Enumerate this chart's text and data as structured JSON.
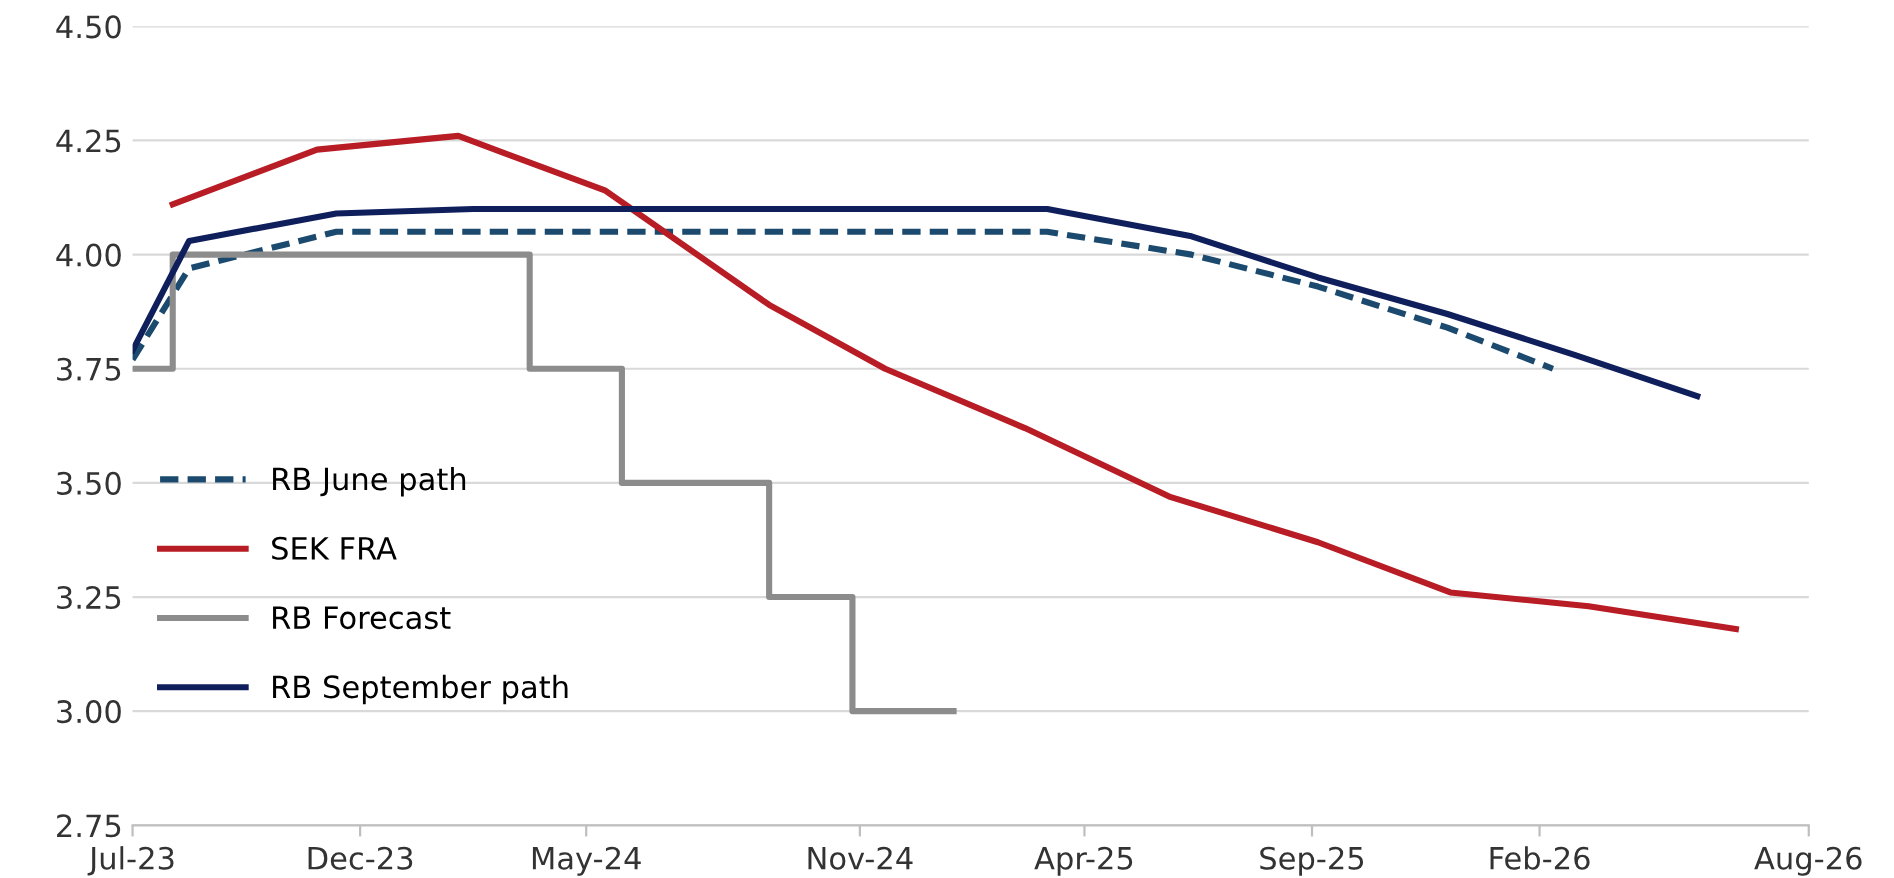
{
  "chart_data": {
    "type": "line",
    "xlim": [
      "2023-07-01",
      "2026-08-01"
    ],
    "xticks": [
      {
        "value": "2023-07-01",
        "label": "Jul-23"
      },
      {
        "value": "2023-12-01",
        "label": "Dec-23"
      },
      {
        "value": "2024-05-01",
        "label": "May-24"
      },
      {
        "value": "2024-11-01",
        "label": "Nov-24"
      },
      {
        "value": "2025-04-01",
        "label": "Apr-25"
      },
      {
        "value": "2025-09-01",
        "label": "Sep-25"
      },
      {
        "value": "2026-02-01",
        "label": "Feb-26"
      },
      {
        "value": "2026-08-01",
        "label": "Aug-26"
      }
    ],
    "ylim": [
      2.75,
      4.5
    ],
    "yticks": [
      {
        "value": 2.75,
        "label": "2.75"
      },
      {
        "value": 3.0,
        "label": "3.00"
      },
      {
        "value": 3.25,
        "label": "3.25"
      },
      {
        "value": 3.5,
        "label": "3.50"
      },
      {
        "value": 3.75,
        "label": "3.75"
      },
      {
        "value": 4.0,
        "label": "4.00"
      },
      {
        "value": 4.25,
        "label": "4.25"
      },
      {
        "value": 4.5,
        "label": "4.50"
      }
    ],
    "grid": "y",
    "legend": "left",
    "series": [
      {
        "name": "RB June path",
        "color": "#1b4a6e",
        "line_style": "dashed",
        "x": [
          "2023-07-01",
          "2023-08-08",
          "2023-11-15",
          "2025-03-07",
          "2025-06-12",
          "2025-09-05",
          "2025-12-01",
          "2026-02-10"
        ],
        "values": [
          3.77,
          3.97,
          4.05,
          4.05,
          4.0,
          3.93,
          3.84,
          3.75
        ]
      },
      {
        "name": "SEK FRA",
        "color": "#b81c25",
        "x": [
          "2023-07-28",
          "2023-11-02",
          "2024-02-05",
          "2024-05-14",
          "2024-09-01",
          "2024-11-18",
          "2025-02-20",
          "2025-05-28",
          "2025-09-05",
          "2025-12-03",
          "2026-03-06",
          "2026-06-13"
        ],
        "values": [
          4.11,
          4.23,
          4.26,
          4.14,
          3.89,
          3.75,
          3.62,
          3.47,
          3.37,
          3.26,
          3.23,
          3.18
        ]
      },
      {
        "name": "RB Forecast",
        "type": "step",
        "color": "#8c8c8c",
        "x": [
          "2023-07-01",
          "2023-07-28",
          "2024-03-24",
          "2024-05-25",
          "2024-09-01",
          "2024-10-27",
          "2025-01-03"
        ],
        "values": [
          3.75,
          4.0,
          3.75,
          3.5,
          3.25,
          3.0,
          3.0
        ]
      },
      {
        "name": "RB September path",
        "color": "#0f1f5c",
        "x": [
          "2023-07-01",
          "2023-08-08",
          "2023-11-15",
          "2024-02-15",
          "2025-03-07",
          "2025-06-12",
          "2025-09-05",
          "2025-12-01",
          "2026-02-25",
          "2026-05-18"
        ],
        "values": [
          3.79,
          4.03,
          4.09,
          4.1,
          4.1,
          4.04,
          3.95,
          3.87,
          3.78,
          3.69
        ]
      }
    ]
  }
}
